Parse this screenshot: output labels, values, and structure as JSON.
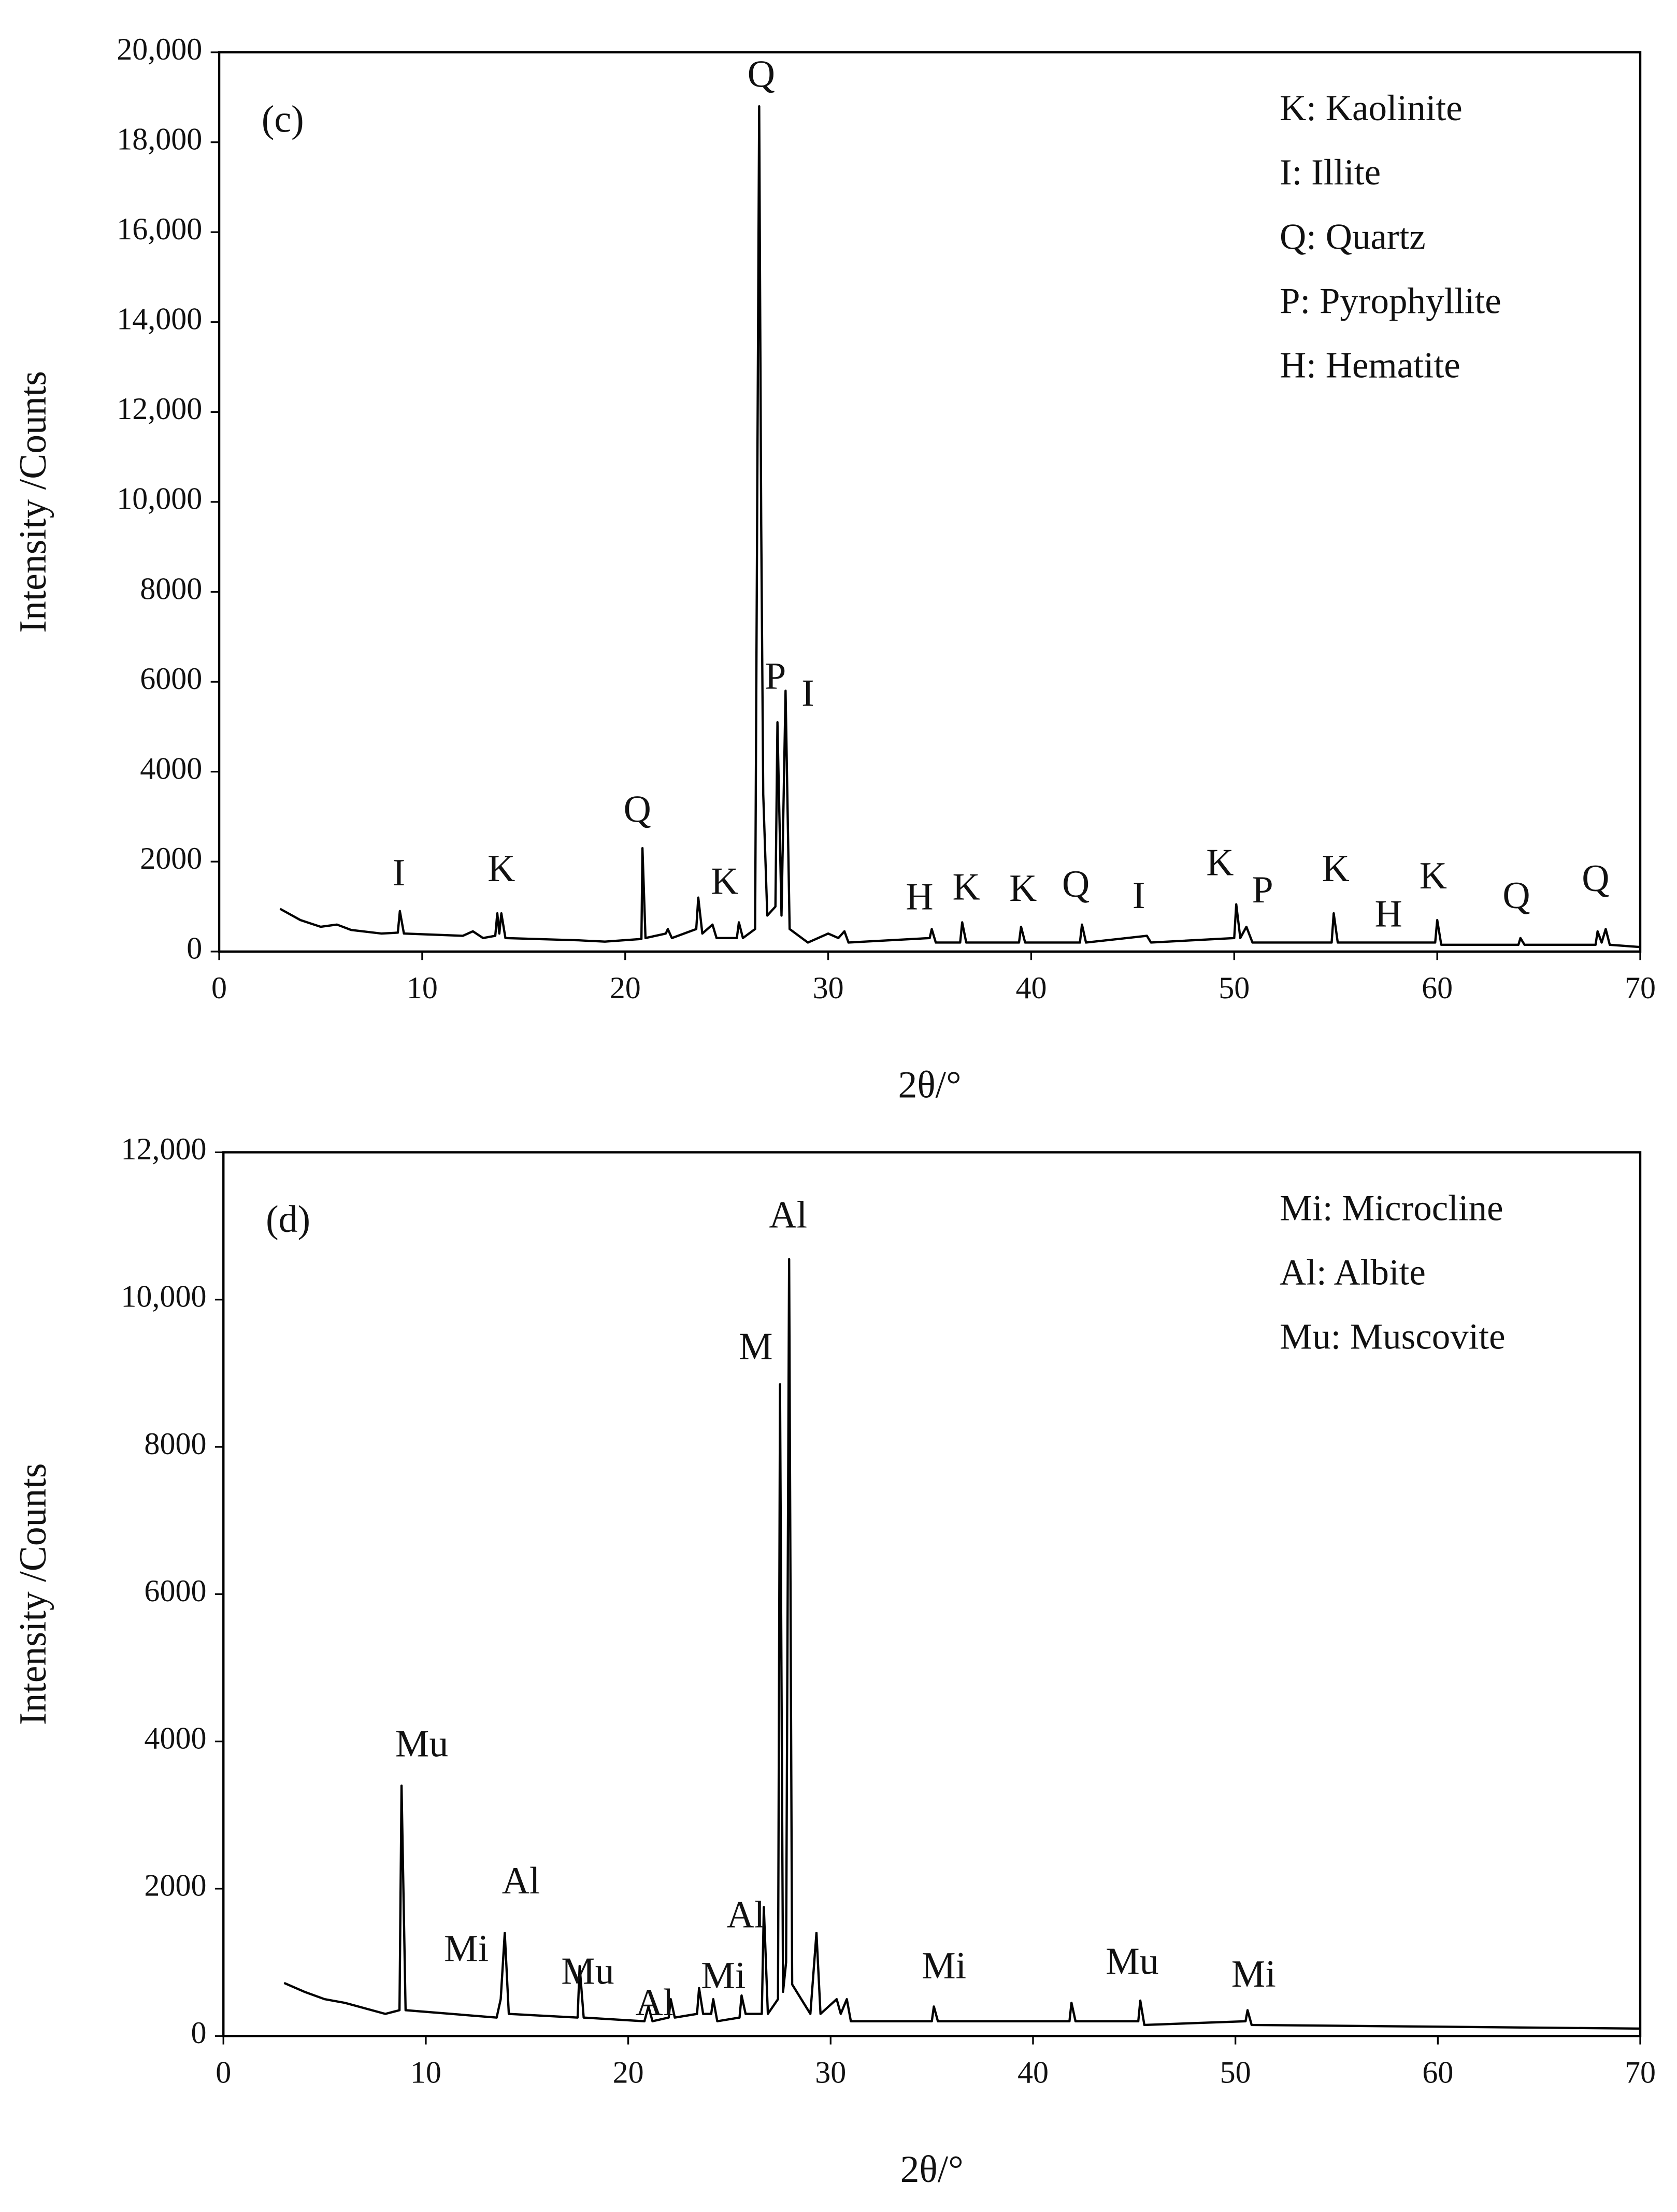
{
  "chart_data": [
    {
      "type": "line",
      "panel_label": "(c)",
      "color": "#000000",
      "x_label": "2θ/°",
      "y_label": "Intensity /Counts",
      "xlim": [
        0,
        70
      ],
      "xticks": [
        0,
        10,
        20,
        30,
        40,
        50,
        60,
        70
      ],
      "ylim": [
        0,
        20000
      ],
      "yticks": [
        0,
        2000,
        4000,
        6000,
        8000,
        {
          "value": 10000,
          "label": "10,000"
        },
        {
          "value": 12000,
          "label": "12,000"
        },
        {
          "value": 14000,
          "label": "14,000"
        },
        {
          "value": 16000,
          "label": "16,000"
        },
        {
          "value": 18000,
          "label": "18,000"
        },
        {
          "value": 20000,
          "label": "20,000"
        }
      ],
      "legend_position": "upper right",
      "legend_text": [
        "K: Kaolinite",
        "I: Illite",
        "Q: Quartz",
        "P: Pyrophyllite",
        "H: Hematite"
      ],
      "x": [
        3,
        4,
        5,
        5.8,
        6.5,
        8,
        8.8,
        8.9,
        9.1,
        12,
        12.5,
        13,
        13.6,
        13.7,
        13.8,
        13.9,
        14.1,
        17.7,
        19,
        20.8,
        20.85,
        21,
        22,
        22.1,
        22.3,
        23.5,
        23.6,
        23.8,
        24.3,
        24.5,
        25.5,
        25.6,
        25.8,
        26.4,
        26.6,
        26.7,
        26.8,
        27,
        27.4,
        27.5,
        27.7,
        27.9,
        28.1,
        29,
        30,
        30.5,
        30.8,
        31,
        35,
        35.1,
        35.3,
        36.5,
        36.6,
        36.8,
        39.4,
        39.5,
        39.7,
        42.4,
        42.5,
        42.7,
        45.7,
        45.9,
        50,
        50.1,
        50.3,
        50.6,
        50.9,
        54.8,
        54.9,
        55.1,
        59.9,
        60,
        60.2,
        64,
        64.1,
        64.3,
        67.8,
        67.9,
        68.1,
        68.3,
        68.5,
        70
      ],
      "values": [
        950,
        700,
        550,
        600,
        480,
        400,
        420,
        900,
        400,
        350,
        450,
        300,
        350,
        850,
        400,
        850,
        300,
        250,
        220,
        280,
        2300,
        300,
        400,
        500,
        300,
        500,
        1200,
        400,
        600,
        300,
        300,
        650,
        300,
        500,
        18800,
        9500,
        3500,
        800,
        1000,
        5100,
        800,
        5800,
        500,
        200,
        400,
        300,
        450,
        200,
        300,
        500,
        200,
        200,
        650,
        200,
        200,
        550,
        200,
        200,
        600,
        200,
        350,
        200,
        300,
        1050,
        300,
        550,
        200,
        200,
        850,
        200,
        200,
        700,
        150,
        150,
        300,
        150,
        150,
        450,
        200,
        500,
        150,
        100
      ],
      "annotations": [
        {
          "text": "I",
          "x": 8.85,
          "y": 1670
        },
        {
          "text": "K",
          "x": 13.9,
          "y": 1760
        },
        {
          "text": "Q",
          "x": 20.6,
          "y": 3080
        },
        {
          "text": "K",
          "x": 24.9,
          "y": 1480
        },
        {
          "text": "Q",
          "x": 26.7,
          "y": 19430
        },
        {
          "text": "P",
          "x": 27.4,
          "y": 6040
        },
        {
          "text": "I",
          "x": 29.0,
          "y": 5660
        },
        {
          "text": "H",
          "x": 34.5,
          "y": 1130
        },
        {
          "text": "K",
          "x": 36.8,
          "y": 1350
        },
        {
          "text": "K",
          "x": 39.6,
          "y": 1320
        },
        {
          "text": "Q",
          "x": 42.2,
          "y": 1415
        },
        {
          "text": "I",
          "x": 45.3,
          "y": 1160
        },
        {
          "text": "K",
          "x": 49.3,
          "y": 1890
        },
        {
          "text": "P",
          "x": 51.4,
          "y": 1290
        },
        {
          "text": "K",
          "x": 55.0,
          "y": 1760
        },
        {
          "text": "H",
          "x": 57.6,
          "y": 750
        },
        {
          "text": "K",
          "x": 59.8,
          "y": 1600
        },
        {
          "text": "Q",
          "x": 63.9,
          "y": 1160
        },
        {
          "text": "Q",
          "x": 67.8,
          "y": 1540
        }
      ]
    },
    {
      "type": "line",
      "panel_label": "(d)",
      "color": "#000000",
      "x_label": "2θ/°",
      "y_label": "Intensity /Counts",
      "xlim": [
        0,
        70
      ],
      "xticks": [
        0,
        10,
        20,
        30,
        40,
        50,
        60,
        70
      ],
      "ylim": [
        0,
        12000
      ],
      "yticks": [
        0,
        2000,
        4000,
        6000,
        8000,
        {
          "value": 10000,
          "label": "10,000"
        },
        {
          "value": 12000,
          "label": "12,000"
        }
      ],
      "legend_position": "upper right",
      "legend_text": [
        "Mi: Microcline",
        "Al: Albite",
        "Mu: Muscovite"
      ],
      "x": [
        3,
        4,
        5,
        6,
        8,
        8.7,
        8.8,
        9,
        13.5,
        13.7,
        13.9,
        14.1,
        17.5,
        17.6,
        17.8,
        20.8,
        21,
        21.2,
        22,
        22.1,
        22.3,
        23.4,
        23.5,
        23.7,
        24.1,
        24.2,
        24.4,
        25.5,
        25.6,
        25.8,
        26.6,
        26.7,
        26.9,
        27.4,
        27.5,
        27.65,
        27.8,
        27.95,
        28.1,
        29,
        29.3,
        29.5,
        30.3,
        30.5,
        30.8,
        31,
        35,
        35.1,
        35.3,
        41.8,
        41.9,
        42.1,
        45.2,
        45.3,
        45.5,
        50.5,
        50.6,
        50.8,
        70
      ],
      "values": [
        720,
        600,
        500,
        450,
        300,
        350,
        3400,
        350,
        250,
        500,
        1400,
        300,
        250,
        950,
        250,
        200,
        400,
        200,
        250,
        500,
        250,
        300,
        650,
        300,
        300,
        500,
        200,
        250,
        550,
        300,
        300,
        1750,
        300,
        500,
        8850,
        600,
        1000,
        10550,
        700,
        300,
        1400,
        300,
        500,
        300,
        500,
        200,
        200,
        400,
        200,
        200,
        450,
        200,
        200,
        480,
        150,
        200,
        350,
        150,
        100
      ],
      "annotations": [
        {
          "text": "Mu",
          "x": 9.8,
          "y": 3917
        },
        {
          "text": "Mi",
          "x": 12.0,
          "y": 1133
        },
        {
          "text": "Al",
          "x": 14.7,
          "y": 2054
        },
        {
          "text": "Mu",
          "x": 18.0,
          "y": 826
        },
        {
          "text": "Al",
          "x": 21.3,
          "y": 403
        },
        {
          "text": "Mi",
          "x": 24.7,
          "y": 768
        },
        {
          "text": "Al",
          "x": 25.8,
          "y": 1594
        },
        {
          "text": "M",
          "x": 26.3,
          "y": 9312
        },
        {
          "text": "Al",
          "x": 27.9,
          "y": 11098
        },
        {
          "text": "Mi",
          "x": 35.6,
          "y": 902
        },
        {
          "text": "Mu",
          "x": 44.9,
          "y": 960
        },
        {
          "text": "Mi",
          "x": 50.9,
          "y": 787
        }
      ]
    }
  ]
}
